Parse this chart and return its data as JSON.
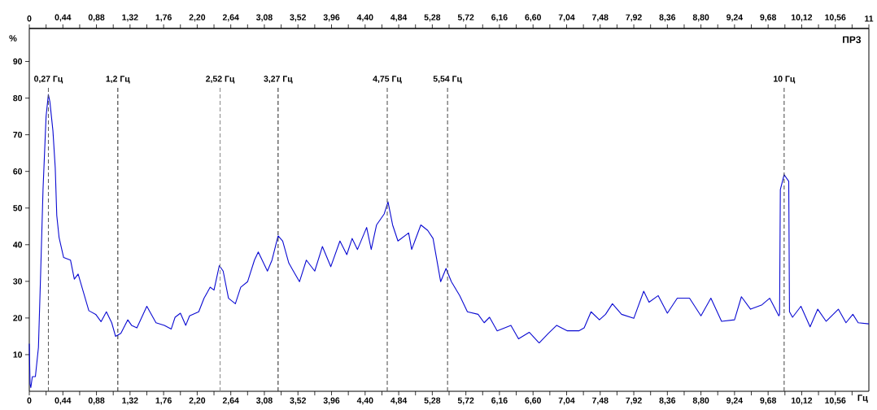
{
  "chart_data": {
    "type": "line",
    "xlabel": "Гц",
    "ylabel": "%",
    "annotations": [
      "ПР3"
    ],
    "xlim": [
      0,
      11
    ],
    "ylim": [
      0,
      99
    ],
    "xticks": [
      {
        "value": 0,
        "label": "0"
      },
      {
        "value": 0.44,
        "label": "0,44"
      },
      {
        "value": 0.88,
        "label": "0,88"
      },
      {
        "value": 1.32,
        "label": "1,32"
      },
      {
        "value": 1.76,
        "label": "1,76"
      },
      {
        "value": 2.2,
        "label": "2,20"
      },
      {
        "value": 2.64,
        "label": "2,64"
      },
      {
        "value": 3.08,
        "label": "3,08"
      },
      {
        "value": 3.52,
        "label": "3,52"
      },
      {
        "value": 3.96,
        "label": "3,96"
      },
      {
        "value": 4.4,
        "label": "4,40"
      },
      {
        "value": 4.84,
        "label": "4,84"
      },
      {
        "value": 5.28,
        "label": "5,28"
      },
      {
        "value": 5.72,
        "label": "5,72"
      },
      {
        "value": 6.16,
        "label": "6,16"
      },
      {
        "value": 6.6,
        "label": "6,60"
      },
      {
        "value": 7.04,
        "label": "7,04"
      },
      {
        "value": 7.48,
        "label": "7,48"
      },
      {
        "value": 7.92,
        "label": "7,92"
      },
      {
        "value": 8.36,
        "label": "8,36"
      },
      {
        "value": 8.8,
        "label": "8,80"
      },
      {
        "value": 9.24,
        "label": "9,24"
      },
      {
        "value": 9.68,
        "label": "9,68"
      },
      {
        "value": 10.12,
        "label": "10,12"
      },
      {
        "value": 10.56,
        "label": "10,56"
      },
      {
        "value": 0.22,
        "label": null
      },
      {
        "value": 0.66,
        "label": null
      },
      {
        "value": 1.1,
        "label": null
      },
      {
        "value": 1.54,
        "label": null
      },
      {
        "value": 1.98,
        "label": null
      },
      {
        "value": 2.42,
        "label": null
      },
      {
        "value": 2.86,
        "label": null
      },
      {
        "value": 3.3,
        "label": null
      },
      {
        "value": 3.74,
        "label": null
      },
      {
        "value": 4.18,
        "label": null
      },
      {
        "value": 4.62,
        "label": null
      },
      {
        "value": 5.06,
        "label": null
      },
      {
        "value": 5.5,
        "label": null
      },
      {
        "value": 5.94,
        "label": null
      },
      {
        "value": 6.38,
        "label": null
      },
      {
        "value": 6.82,
        "label": null
      },
      {
        "value": 7.26,
        "label": null
      },
      {
        "value": 7.7,
        "label": null
      },
      {
        "value": 8.14,
        "label": null
      },
      {
        "value": 8.58,
        "label": null
      },
      {
        "value": 9.02,
        "label": null
      },
      {
        "value": 9.46,
        "label": null
      },
      {
        "value": 9.9,
        "label": null
      },
      {
        "value": 10.34,
        "label": null
      },
      {
        "value": 10.78,
        "label": null
      }
    ],
    "x2lim": [
      0,
      11
    ],
    "x2ticks": [
      {
        "value": 0,
        "label": "0"
      },
      {
        "value": 0.44,
        "label": "0,44"
      },
      {
        "value": 0.88,
        "label": "0,88"
      },
      {
        "value": 1.32,
        "label": "1,32"
      },
      {
        "value": 1.76,
        "label": "1,76"
      },
      {
        "value": 2.2,
        "label": "2,20"
      },
      {
        "value": 2.64,
        "label": "2,64"
      },
      {
        "value": 3.08,
        "label": "3,08"
      },
      {
        "value": 3.52,
        "label": "3,52"
      },
      {
        "value": 3.96,
        "label": "3,96"
      },
      {
        "value": 4.4,
        "label": "4,40"
      },
      {
        "value": 4.84,
        "label": "4,84"
      },
      {
        "value": 5.28,
        "label": "5,28"
      },
      {
        "value": 5.72,
        "label": "5,72"
      },
      {
        "value": 6.16,
        "label": "6,16"
      },
      {
        "value": 6.6,
        "label": "6,60"
      },
      {
        "value": 7.04,
        "label": "7,04"
      },
      {
        "value": 7.48,
        "label": "7,48"
      },
      {
        "value": 7.92,
        "label": "7,92"
      },
      {
        "value": 8.36,
        "label": "8,36"
      },
      {
        "value": 8.8,
        "label": "8,80"
      },
      {
        "value": 9.24,
        "label": "9,24"
      },
      {
        "value": 9.68,
        "label": "9,68"
      },
      {
        "value": 10.12,
        "label": "10,12"
      },
      {
        "value": 10.56,
        "label": "10,56"
      },
      {
        "value": 11,
        "label": "11"
      },
      {
        "value": 0.22,
        "label": null
      },
      {
        "value": 0.66,
        "label": null
      },
      {
        "value": 1.1,
        "label": null
      },
      {
        "value": 1.54,
        "label": null
      },
      {
        "value": 1.98,
        "label": null
      },
      {
        "value": 2.42,
        "label": null
      },
      {
        "value": 2.86,
        "label": null
      },
      {
        "value": 3.3,
        "label": null
      },
      {
        "value": 3.74,
        "label": null
      },
      {
        "value": 4.18,
        "label": null
      },
      {
        "value": 4.62,
        "label": null
      },
      {
        "value": 5.06,
        "label": null
      },
      {
        "value": 5.5,
        "label": null
      },
      {
        "value": 5.94,
        "label": null
      },
      {
        "value": 6.38,
        "label": null
      },
      {
        "value": 6.82,
        "label": null
      },
      {
        "value": 7.26,
        "label": null
      },
      {
        "value": 7.7,
        "label": null
      },
      {
        "value": 8.14,
        "label": null
      },
      {
        "value": 8.58,
        "label": null
      },
      {
        "value": 9.02,
        "label": null
      },
      {
        "value": 9.46,
        "label": null
      },
      {
        "value": 9.9,
        "label": null
      },
      {
        "value": 10.34,
        "label": null
      },
      {
        "value": 10.78,
        "label": null
      }
    ],
    "yticks": [
      10,
      20,
      30,
      40,
      50,
      60,
      70,
      80,
      90
    ],
    "ref_lines": [
      {
        "axis": "x",
        "value": 0.25,
        "label": "0,27 Гц",
        "color": "#555555",
        "line_style": "dashed"
      },
      {
        "axis": "x",
        "value": 1.16,
        "label": "1,2 Гц",
        "color": "#222222",
        "line_style": "dashed"
      },
      {
        "axis": "x",
        "value": 2.5,
        "label": "2,52 Гц",
        "color": "#888888",
        "line_style": "dashed"
      },
      {
        "axis": "x",
        "value": 3.26,
        "label": "3,27 Гц",
        "color": "#222222",
        "line_style": "dashed"
      },
      {
        "axis": "x",
        "value": 4.69,
        "label": "4,75 Гц",
        "color": "#444444",
        "line_style": "dashed"
      },
      {
        "axis": "x",
        "value": 5.48,
        "label": "5,54 Гц",
        "color": "#444444",
        "line_style": "dashed"
      },
      {
        "axis": "x",
        "value": 9.89,
        "label": "10 Гц",
        "color": "#444444",
        "line_style": "dashed"
      }
    ],
    "series": [
      {
        "color": "#0a0ad2",
        "x": [
          0,
          0.01,
          0.02,
          0.04,
          0.08,
          0.12,
          0.15,
          0.18,
          0.22,
          0.25,
          0.27,
          0.31,
          0.34,
          0.36,
          0.39,
          0.45,
          0.54,
          0.59,
          0.64,
          0.71,
          0.78,
          0.87,
          0.94,
          1.01,
          1.08,
          1.13,
          1.2,
          1.29,
          1.34,
          1.41,
          1.54,
          1.66,
          1.77,
          1.86,
          1.91,
          1.98,
          2.05,
          2.1,
          2.22,
          2.29,
          2.37,
          2.42,
          2.49,
          2.54,
          2.61,
          2.7,
          2.77,
          2.86,
          2.95,
          3.0,
          3.12,
          3.18,
          3.26,
          3.32,
          3.4,
          3.46,
          3.54,
          3.63,
          3.74,
          3.84,
          3.95,
          4.07,
          4.16,
          4.23,
          4.3,
          4.42,
          4.48,
          4.55,
          4.65,
          4.7,
          4.76,
          4.83,
          4.97,
          5.01,
          5.13,
          5.22,
          5.29,
          5.39,
          5.46,
          5.53,
          5.64,
          5.74,
          5.88,
          5.96,
          6.03,
          6.13,
          6.31,
          6.41,
          6.55,
          6.68,
          6.8,
          6.91,
          7.05,
          7.2,
          7.27,
          7.36,
          7.47,
          7.55,
          7.64,
          7.76,
          7.92,
          8.05,
          8.12,
          8.24,
          8.36,
          8.49,
          8.65,
          8.8,
          8.93,
          9.07,
          9.24,
          9.33,
          9.45,
          9.6,
          9.7,
          9.82,
          9.83,
          9.84,
          9.89,
          9.95,
          9.96,
          10.0,
          10.11,
          10.23,
          10.33,
          10.44,
          10.6,
          10.7,
          10.79,
          10.86,
          11.0
        ],
        "values": [
          13,
          2,
          1,
          4,
          4,
          12,
          33,
          55,
          75,
          81,
          79,
          71,
          61,
          48,
          42,
          36.5,
          35.8,
          30.6,
          32,
          27,
          22,
          21,
          19,
          21.7,
          18.7,
          15,
          15.8,
          19.5,
          18,
          17.3,
          23.2,
          18.7,
          18,
          17,
          20.2,
          21.3,
          18,
          20.6,
          21.7,
          25.4,
          28.4,
          27.6,
          34.3,
          32.8,
          25.4,
          23.9,
          28.4,
          29.9,
          35.8,
          38,
          32.8,
          35.8,
          42.4,
          41,
          35,
          32.8,
          29.9,
          35.8,
          32.8,
          39.5,
          34,
          41,
          37.3,
          41.7,
          38.7,
          44.7,
          38.7,
          45.4,
          48.4,
          51.7,
          45.4,
          41,
          43.2,
          38.7,
          45.4,
          43.9,
          41.7,
          29.9,
          33.5,
          29.9,
          26.1,
          21.7,
          21,
          18.7,
          20.2,
          16.5,
          18,
          14.3,
          16.1,
          13.2,
          15.8,
          18,
          16.5,
          16.5,
          17.3,
          21.7,
          19.5,
          21,
          23.9,
          21,
          19.9,
          27.3,
          24.3,
          26.1,
          21.3,
          25.4,
          25.4,
          20.6,
          25.4,
          19.1,
          19.5,
          25.8,
          22.4,
          23.6,
          25.4,
          20.6,
          21,
          55,
          59.1,
          57.3,
          21.7,
          20.2,
          23.2,
          17.6,
          22.4,
          19.1,
          22.4,
          18.7,
          21,
          18.7,
          18.4
        ]
      }
    ]
  }
}
